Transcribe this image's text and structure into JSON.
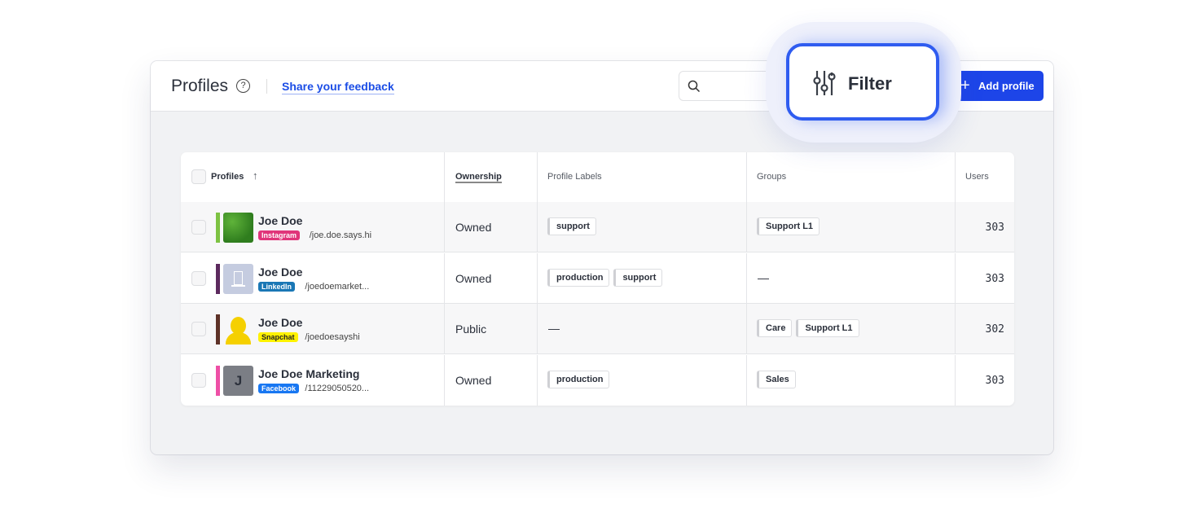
{
  "header": {
    "title": "Profiles",
    "feedback_link": "Share your feedback",
    "search_placeholder": "",
    "add_button": "Add profile",
    "filter_button": "Filter"
  },
  "table": {
    "columns": [
      "Profiles",
      "Ownership",
      "Profile Labels",
      "Groups",
      "Users"
    ],
    "sort": "ascending",
    "rows": [
      {
        "name": "Joe Doe",
        "network": "Instagram",
        "network_color": "#e0357a",
        "handle": "/joe.doe.says.hi",
        "bar_color": "#7dc242",
        "ownership": "Owned",
        "labels": [
          "support"
        ],
        "groups": [
          "Support L1"
        ],
        "users": "303"
      },
      {
        "name": "Joe Doe",
        "network": "LinkedIn",
        "network_color": "#1a77b5",
        "handle": "/joedoemarket...",
        "bar_color": "#5c2a5e",
        "ownership": "Owned",
        "labels": [
          "production",
          "support"
        ],
        "groups": [],
        "users": "303"
      },
      {
        "name": "Joe Doe",
        "network": "Snapchat",
        "network_color": "#fff200",
        "handle": "/joedoesayshi",
        "bar_color": "#5e3228",
        "ownership": "Public",
        "labels": [],
        "groups": [
          "Care",
          "Support L1"
        ],
        "users": "302"
      },
      {
        "name": "Joe Doe Marketing",
        "network": "Facebook",
        "network_color": "#1877f2",
        "handle": "/11229050520...",
        "bar_color": "#ee4fa6",
        "avatar_letter": "J",
        "ownership": "Owned",
        "labels": [
          "production"
        ],
        "groups": [
          "Sales"
        ],
        "users": "303"
      }
    ],
    "empty": "—"
  },
  "colors": {
    "accent": "#1d45e8"
  }
}
